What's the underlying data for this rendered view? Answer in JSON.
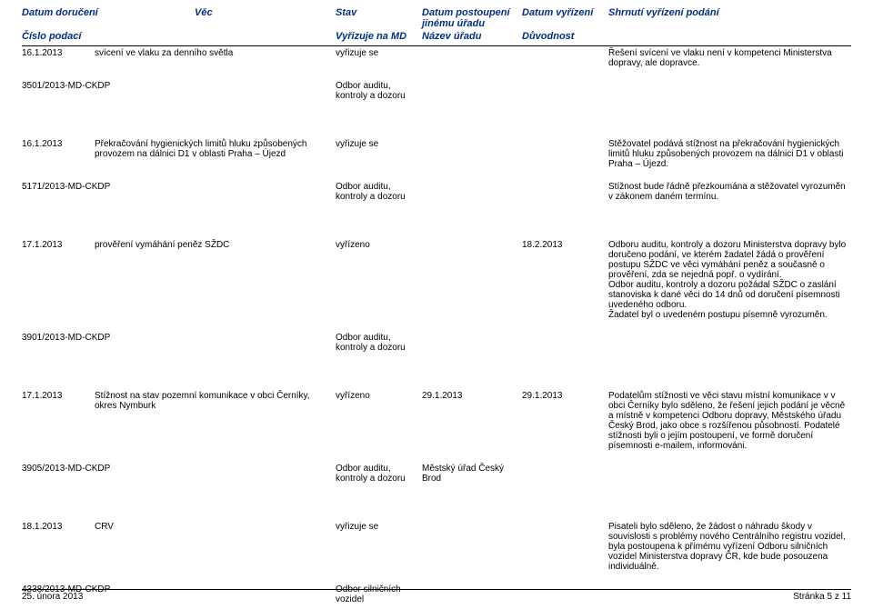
{
  "headers": {
    "row1": {
      "c1": "Datum doručení",
      "c2": "Věc",
      "c3": "Stav",
      "c4": "Datum postoupení jinému úřadu",
      "c5": "Datum vyřízení",
      "c6": "Shrnutí vyřízení podání"
    },
    "row2": {
      "c1": "Číslo podací",
      "c3": "Vyřizuje na MD",
      "c4": "Název úřadu",
      "c5": "Důvodnost"
    }
  },
  "records": [
    {
      "date": "16.1.2013",
      "subject": "svícení ve vlaku za denního světla",
      "status": "vyřizuje se",
      "forward_date": "",
      "resolve_date": "",
      "summary": "Řešení svícení ve vlaku není v kompetenci Ministerstva dopravy, ale dopravce.",
      "ref": "3501/2013-MD-CKDP",
      "subject2": "",
      "dept": "Odbor auditu, kontroly a dozoru",
      "office": "",
      "reason": "",
      "summary2": ""
    },
    {
      "date": "16.1.2013",
      "subject": "Překračování hygienických limitů hluku způsobených provozem na dálnici D1 v oblasti Praha – Újezd",
      "status": "vyřizuje se",
      "forward_date": "",
      "resolve_date": "",
      "summary": "Stěžovatel podává stížnost na překračování hygienických limitů hluku způsobených provozem na dálnici D1 v oblasti Praha – Újezd.",
      "ref": "5171/2013-MD-CKDP",
      "subject2": "",
      "dept": "Odbor auditu, kontroly a dozoru",
      "office": "",
      "reason": "",
      "summary2": "Stížnost bude řádně přezkoumána a stěžovatel vyrozuměn v zákonem daném termínu."
    },
    {
      "date": "17.1.2013",
      "subject": "prověření vymáhání peněz SŽDC",
      "status": "vyřízeno",
      "forward_date": "",
      "resolve_date": "18.2.2013",
      "summary": "Odboru auditu, kontroly a dozoru Ministerstva dopravy bylo doručeno podání, ve kterém žadatel žádá o prověření postupu SŽDC ve věci vymáhání peněz a současně o prověření, zda se nejedná popř. o vydírání.\nOdbor auditu, kontroly a dozoru požádal SŽDC o zaslání stanoviska k dané věci do 14 dnů od doručení písemnosti uvedeného odboru.\nŽadatel byl o uvedeném postupu písemně vyrozuměn.",
      "ref": "3901/2013-MD-CKDP",
      "subject2": "",
      "dept": "Odbor auditu, kontroly a dozoru",
      "office": "",
      "reason": "",
      "summary2": ""
    },
    {
      "date": "17.1.2013",
      "subject": "Stížnost na stav pozemní komunikace v obci Černíky, okres Nymburk",
      "status": "vyřízeno",
      "forward_date": "29.1.2013",
      "resolve_date": "29.1.2013",
      "summary": "Podatelům stížnosti ve věci stavu místní komunikace v  v obci Černíky bylo sděleno, že řešení jejich podání je věcně a místně v kompetenci Odboru dopravy, Městského úřadu Český Brod, jako obce s rozšířenou působností. Podatelé stížnosti byli o jejím postoupení, ve formě doručení písemnosti e-mailem, informováni.",
      "ref": "3905/2013-MD-CKDP",
      "subject2": "",
      "dept": "Odbor auditu, kontroly a dozoru",
      "office": "Městský úřad Český Brod",
      "reason": "",
      "summary2": ""
    },
    {
      "date": "18.1.2013",
      "subject": "CRV",
      "status": "vyřizuje se",
      "forward_date": "",
      "resolve_date": "",
      "summary": "Pisateli bylo sděleno, že žádost o náhradu škody v souvislosti s problémy nového Centrálního registru vozidel, byla postoupena k přímému vyřízení Odboru silničních vozidel Ministerstva dopravy ČR, kde bude posouzena individuálně.",
      "ref": "4338/2013-MD-CKDP",
      "subject2": "",
      "dept": "Odbor silničních vozidel",
      "office": "",
      "reason": "",
      "summary2": ""
    }
  ],
  "footer": {
    "left": "25. února 2013",
    "right": "Stránka 5 z 11"
  }
}
